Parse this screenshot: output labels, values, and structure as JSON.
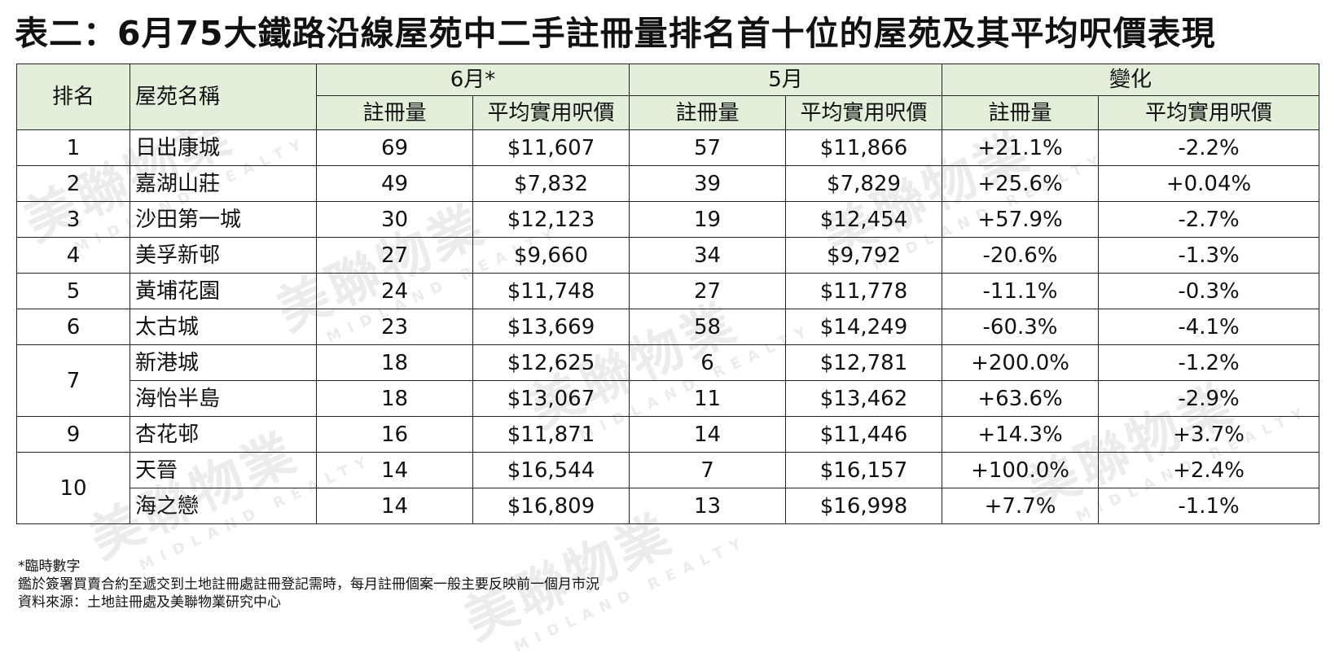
{
  "title": "表二：6月75大鐵路沿線屋苑中二手註冊量排名首十位的屋苑及其平均呎價表現",
  "watermark": {
    "main": "美聯物業",
    "sub": "MIDLAND REALTY"
  },
  "header": {
    "rank": "排名",
    "estate": "屋苑名稱",
    "june": "6月*",
    "may": "5月",
    "change": "變化",
    "reg": "註冊量",
    "price": "平均實用呎價"
  },
  "rows": [
    {
      "rank": "1",
      "estate": "日出康城",
      "jun_reg": "69",
      "jun_price": "$11,607",
      "may_reg": "57",
      "may_price": "$11,866",
      "chg_reg": "+21.1%",
      "chg_price": "-2.2%"
    },
    {
      "rank": "2",
      "estate": "嘉湖山莊",
      "jun_reg": "49",
      "jun_price": "$7,832",
      "may_reg": "39",
      "may_price": "$7,829",
      "chg_reg": "+25.6%",
      "chg_price": "+0.04%"
    },
    {
      "rank": "3",
      "estate": "沙田第一城",
      "jun_reg": "30",
      "jun_price": "$12,123",
      "may_reg": "19",
      "may_price": "$12,454",
      "chg_reg": "+57.9%",
      "chg_price": "-2.7%"
    },
    {
      "rank": "4",
      "estate": "美孚新邨",
      "jun_reg": "27",
      "jun_price": "$9,660",
      "may_reg": "34",
      "may_price": "$9,792",
      "chg_reg": "-20.6%",
      "chg_price": "-1.3%"
    },
    {
      "rank": "5",
      "estate": "黃埔花園",
      "jun_reg": "24",
      "jun_price": "$11,748",
      "may_reg": "27",
      "may_price": "$11,778",
      "chg_reg": "-11.1%",
      "chg_price": "-0.3%"
    },
    {
      "rank": "6",
      "estate": "太古城",
      "jun_reg": "23",
      "jun_price": "$13,669",
      "may_reg": "58",
      "may_price": "$14,249",
      "chg_reg": "-60.3%",
      "chg_price": "-4.1%"
    },
    {
      "rank": "7",
      "estate": "新港城",
      "jun_reg": "18",
      "jun_price": "$12,625",
      "may_reg": "6",
      "may_price": "$12,781",
      "chg_reg": "+200.0%",
      "chg_price": "-1.2%"
    },
    {
      "rank": "",
      "estate": "海怡半島",
      "jun_reg": "18",
      "jun_price": "$13,067",
      "may_reg": "11",
      "may_price": "$13,462",
      "chg_reg": "+63.6%",
      "chg_price": "-2.9%"
    },
    {
      "rank": "9",
      "estate": "杏花邨",
      "jun_reg": "16",
      "jun_price": "$11,871",
      "may_reg": "14",
      "may_price": "$11,446",
      "chg_reg": "+14.3%",
      "chg_price": "+3.7%"
    },
    {
      "rank": "10",
      "estate": "天晉",
      "jun_reg": "14",
      "jun_price": "$16,544",
      "may_reg": "7",
      "may_price": "$16,157",
      "chg_reg": "+100.0%",
      "chg_price": "+2.4%"
    },
    {
      "rank": "",
      "estate": "海之戀",
      "jun_reg": "14",
      "jun_price": "$16,809",
      "may_reg": "13",
      "may_price": "$16,998",
      "chg_reg": "+7.7%",
      "chg_price": "-1.1%"
    }
  ],
  "notes": [
    "*臨時數字",
    "鑑於簽署買賣合約至遞交到土地註冊處註冊登記需時，每月註冊個案一般主要反映前一個月市況",
    "資料來源：土地註冊處及美聯物業研究中心"
  ]
}
